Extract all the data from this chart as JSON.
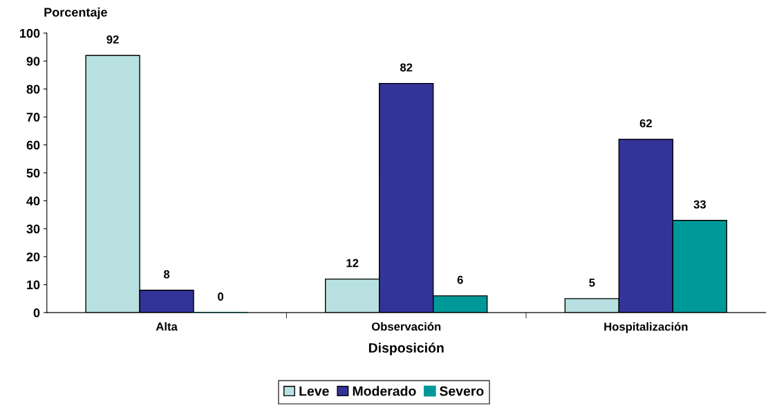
{
  "chart_data": {
    "type": "bar",
    "xlabel": "Disposición",
    "ylabel": "Porcentaje",
    "categories": [
      "Alta",
      "Observación",
      "Hospitalización"
    ],
    "series": [
      {
        "name": "Leve",
        "color": "#b8e0e0",
        "values": [
          92,
          12,
          5
        ]
      },
      {
        "name": "Moderado",
        "color": "#333399",
        "values": [
          8,
          82,
          62
        ]
      },
      {
        "name": "Severo",
        "color": "#009999",
        "values": [
          0,
          6,
          33
        ]
      }
    ],
    "ylim": [
      0,
      100
    ],
    "yticks": [
      0,
      10,
      20,
      30,
      40,
      50,
      60,
      70,
      80,
      90,
      100
    ],
    "data_labels": true,
    "grid": false,
    "legend": "bottom"
  }
}
